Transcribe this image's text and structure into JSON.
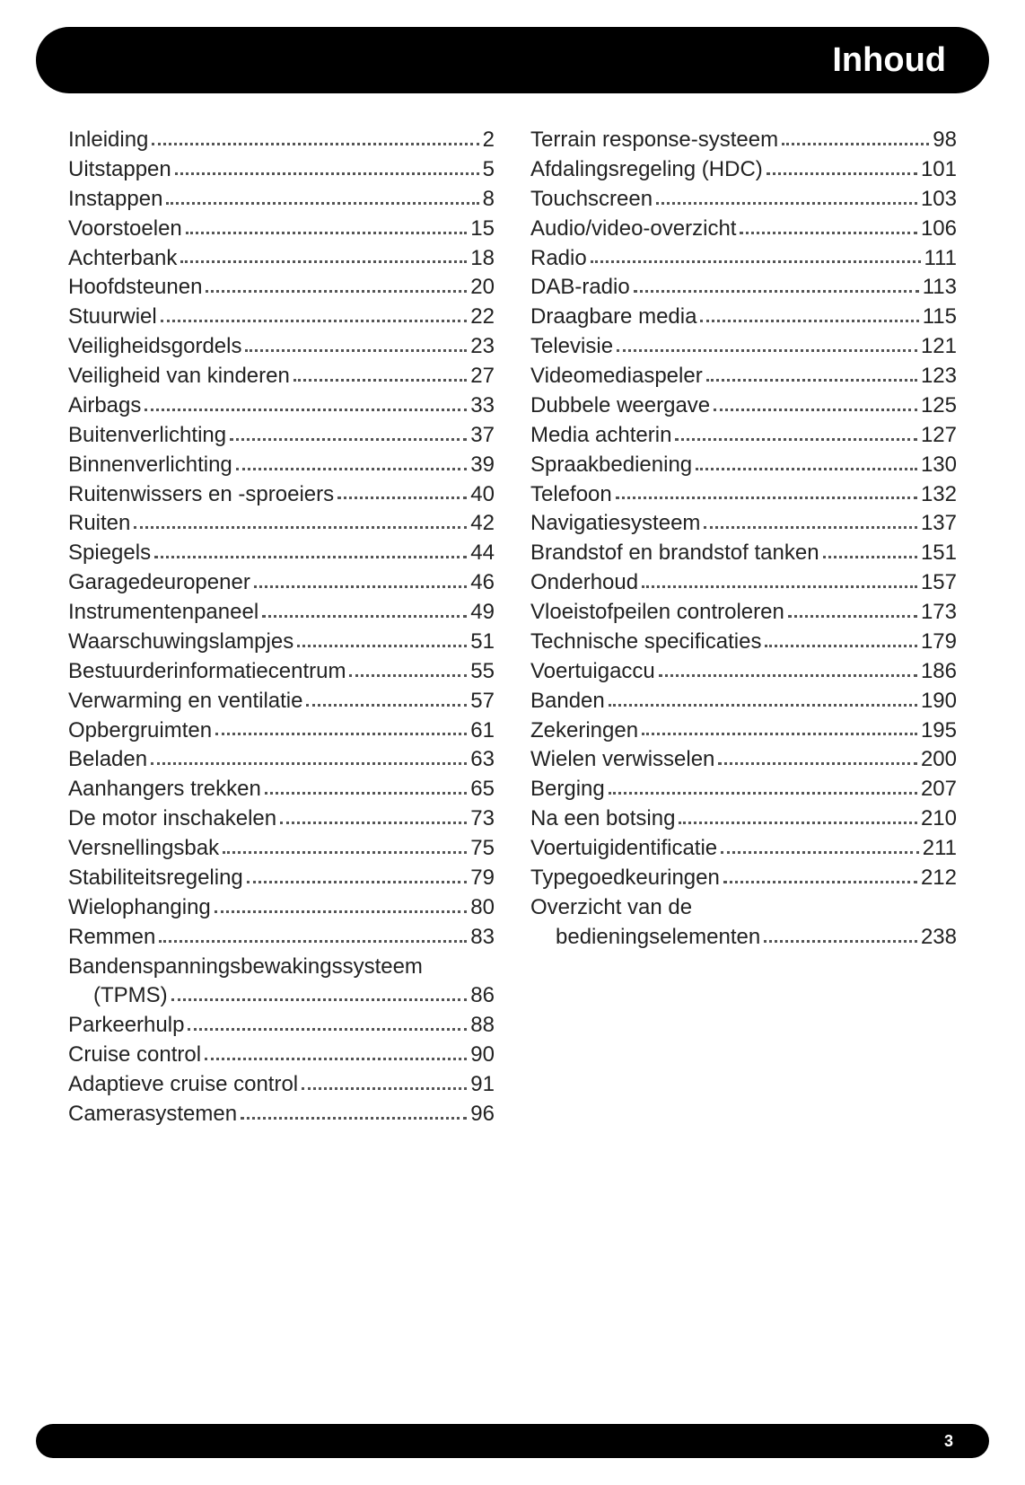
{
  "header": {
    "title": "Inhoud"
  },
  "footer": {
    "page": "3"
  },
  "colors": {
    "header_bg": "#000000",
    "header_text": "#ffffff",
    "body_bg": "#ffffff",
    "text": "#222222",
    "leader": "#555555"
  },
  "typography": {
    "header_fontsize": 38,
    "entry_fontsize": 24,
    "pagenum_fontsize": 18,
    "font_family": "Arial"
  },
  "toc": {
    "left": [
      {
        "title": "Inleiding",
        "page": "2"
      },
      {
        "title": "Uitstappen",
        "page": "5"
      },
      {
        "title": "Instappen",
        "page": "8"
      },
      {
        "title": "Voorstoelen",
        "page": "15"
      },
      {
        "title": "Achterbank",
        "page": "18"
      },
      {
        "title": "Hoofdsteunen",
        "page": "20"
      },
      {
        "title": "Stuurwiel",
        "page": "22"
      },
      {
        "title": "Veiligheidsgordels",
        "page": "23"
      },
      {
        "title": "Veiligheid van kinderen",
        "page": "27"
      },
      {
        "title": "Airbags",
        "page": "33"
      },
      {
        "title": "Buitenverlichting",
        "page": "37"
      },
      {
        "title": "Binnenverlichting",
        "page": "39"
      },
      {
        "title": "Ruitenwissers en -sproeiers",
        "page": "40"
      },
      {
        "title": "Ruiten",
        "page": "42"
      },
      {
        "title": "Spiegels",
        "page": "44"
      },
      {
        "title": "Garagedeuropener",
        "page": "46"
      },
      {
        "title": "Instrumentenpaneel",
        "page": "49"
      },
      {
        "title": "Waarschuwingslampjes",
        "page": "51"
      },
      {
        "title": "Bestuurderinformatiecentrum",
        "page": "55"
      },
      {
        "title": "Verwarming en ventilatie",
        "page": "57"
      },
      {
        "title": "Opbergruimten",
        "page": "61"
      },
      {
        "title": "Beladen",
        "page": "63"
      },
      {
        "title": "Aanhangers trekken",
        "page": "65"
      },
      {
        "title": "De motor inschakelen",
        "page": "73"
      },
      {
        "title": "Versnellingsbak",
        "page": "75"
      },
      {
        "title": "Stabiliteitsregeling",
        "page": "79"
      },
      {
        "title": "Wielophanging",
        "page": "80"
      },
      {
        "title": "Remmen",
        "page": "83"
      },
      {
        "title": "Bandenspanningsbewakingssysteem",
        "cont": "(TPMS)",
        "page": "86"
      },
      {
        "title": "Parkeerhulp",
        "page": "88"
      },
      {
        "title": "Cruise control",
        "page": "90"
      },
      {
        "title": "Adaptieve cruise control",
        "page": "91"
      },
      {
        "title": "Camerasystemen",
        "page": "96"
      }
    ],
    "right": [
      {
        "title": "Terrain response-systeem",
        "page": "98"
      },
      {
        "title": "Afdalingsregeling (HDC)",
        "page": "101"
      },
      {
        "title": "Touchscreen",
        "page": "103"
      },
      {
        "title": "Audio/video-overzicht",
        "page": "106"
      },
      {
        "title": "Radio",
        "page": "111"
      },
      {
        "title": "DAB-radio",
        "page": "113"
      },
      {
        "title": "Draagbare media",
        "page": "115"
      },
      {
        "title": "Televisie",
        "page": "121"
      },
      {
        "title": "Videomediaspeler",
        "page": "123"
      },
      {
        "title": "Dubbele weergave",
        "page": "125"
      },
      {
        "title": "Media achterin",
        "page": "127"
      },
      {
        "title": "Spraakbediening",
        "page": "130"
      },
      {
        "title": "Telefoon",
        "page": "132"
      },
      {
        "title": "Navigatiesysteem",
        "page": "137"
      },
      {
        "title": "Brandstof en brandstof tanken",
        "page": "151"
      },
      {
        "title": "Onderhoud",
        "page": "157"
      },
      {
        "title": "Vloeistofpeilen controleren",
        "page": "173"
      },
      {
        "title": "Technische specificaties",
        "page": "179"
      },
      {
        "title": "Voertuigaccu",
        "page": "186"
      },
      {
        "title": "Banden",
        "page": "190"
      },
      {
        "title": "Zekeringen",
        "page": "195"
      },
      {
        "title": "Wielen verwisselen",
        "page": "200"
      },
      {
        "title": "Berging",
        "page": "207"
      },
      {
        "title": "Na een botsing",
        "page": "210"
      },
      {
        "title": "Voertuigidentificatie",
        "page": "211"
      },
      {
        "title": "Typegoedkeuringen",
        "page": "212"
      },
      {
        "title": "Overzicht van de",
        "cont": "bedieningselementen",
        "page": "238"
      }
    ]
  }
}
